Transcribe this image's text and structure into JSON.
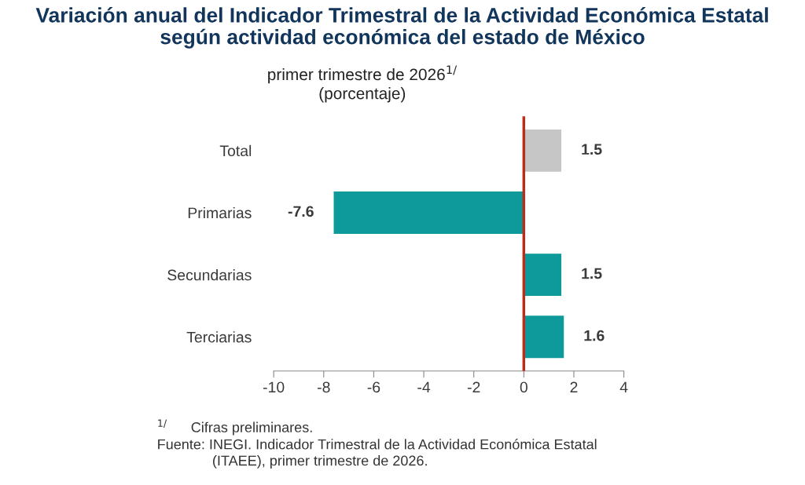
{
  "chart_data": {
    "type": "bar",
    "orientation": "horizontal",
    "title": "Variación anual del Indicador Trimestral de la Actividad Económica Estatal\nsegún actividad económica del estado de México",
    "subtitle": "primer trimestre de 2026$^{1/}$\n(porcentaje)",
    "categories": [
      "Total",
      "Primarias",
      "Secundarias",
      "Terciarias"
    ],
    "values": [
      1.5,
      -7.6,
      1.5,
      1.6
    ],
    "colors": [
      "#c6c6c6",
      "#0e9a9a",
      "#0e9a9a",
      "#0e9a9a"
    ],
    "xlim": [
      -10,
      4
    ],
    "xticks": [
      -10,
      -8,
      -6,
      -4,
      -2,
      0,
      2,
      4
    ],
    "ref_lines": [
      {
        "axis": "x",
        "value": 0,
        "label": null,
        "color": "#b5301c"
      }
    ],
    "data_labels": true,
    "grid": false,
    "legend": false,
    "annotations": [
      "$^{1/}$      Cifras preliminares.",
      "Fuente: INEGI. Indicador Trimestral de la Actividad Económica Estatal\n              (ITAEE), primer trimestre de 2026."
    ]
  }
}
